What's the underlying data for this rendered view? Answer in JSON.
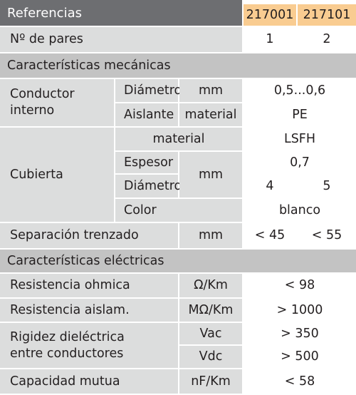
{
  "header": {
    "label": "Referencias",
    "refs": [
      "217001",
      "217101"
    ]
  },
  "pares": {
    "label": "Nº de pares",
    "values": [
      "1",
      "2"
    ]
  },
  "mecanicas": {
    "title": "Características mecánicas",
    "conductor": {
      "label_line1": "Conductor",
      "label_line2": "interno",
      "diametro": {
        "label": "Diámetro",
        "unit": "mm",
        "value": "0,5...0,6"
      },
      "aislante": {
        "label": "Aislante",
        "unit": "material",
        "value": "PE"
      }
    },
    "cubierta": {
      "label": "Cubierta",
      "material": {
        "label": "material",
        "value": "LSFH"
      },
      "espesor": {
        "label": "Espesor",
        "value": "0,7"
      },
      "diametro": {
        "label": "Diámetro",
        "values": [
          "4",
          "5"
        ]
      },
      "unit_mm": "mm",
      "color": {
        "label": "Color",
        "value": "blanco"
      }
    },
    "separacion": {
      "label": "Separación trenzado",
      "unit": "mm",
      "values": [
        "< 45",
        "< 55"
      ]
    }
  },
  "electricas": {
    "title": "Características eléctricas",
    "resistencia_ohmica": {
      "label": "Resistencia ohmica",
      "unit": "Ω/Km",
      "value": "< 98"
    },
    "resistencia_aislam": {
      "label": "Resistencia aislam.",
      "unit": "MΩ/Km",
      "value": "> 1000"
    },
    "rigidez": {
      "label_line1": "Rigidez dieléctrica",
      "label_line2": "entre conductores",
      "vac": {
        "unit": "Vac",
        "value": "> 350"
      },
      "vdc": {
        "unit": "Vdc",
        "value": "> 500"
      }
    },
    "capacidad": {
      "label": "Capacidad mutua",
      "unit": "nF/Km",
      "value": "< 58"
    }
  }
}
